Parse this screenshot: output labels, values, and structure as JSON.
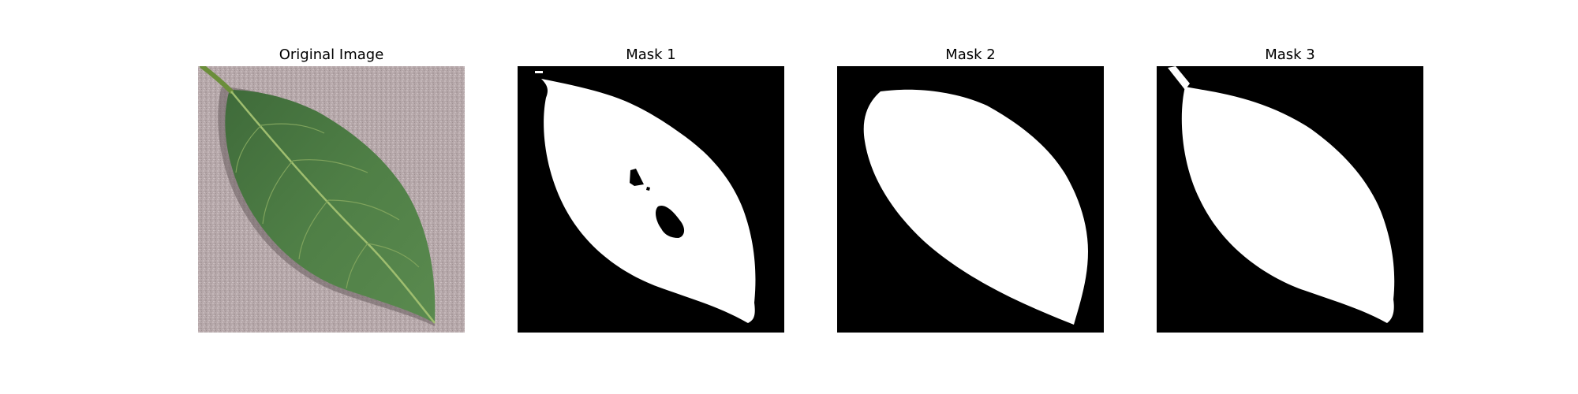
{
  "panels": [
    {
      "title": "Original Image"
    },
    {
      "title": "Mask 1"
    },
    {
      "title": "Mask 2"
    },
    {
      "title": "Mask 3"
    }
  ],
  "colors": {
    "background": "#ffffff",
    "mask_background": "#000000",
    "mask_foreground": "#ffffff",
    "leaf_green": "#4f7f46",
    "leaf_vein": "#9fbe6f",
    "surface_pink": "#b6a8aa"
  }
}
